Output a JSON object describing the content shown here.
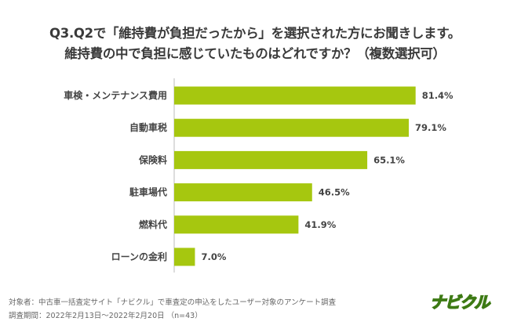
{
  "title_line1": "Q3.Q2で「維持費が負担だったから」を選択された方にお聞きします。",
  "title_line2": "維持費の中で負担に感じていたものはどれですか？（複数選択可）",
  "footnote1": "対象者：中古車一括査定サイト「ナビクル」で車査定の申込をしたユーザー対象のアンケート調査",
  "footnote2": "調査期間：2022年2月13日〜2022年2月20日 （n=43）",
  "logo": "ナビクル",
  "colors": {
    "bar": "#a6c70f"
  },
  "chart_data": {
    "type": "bar",
    "orientation": "horizontal",
    "title": "Q3.Q2で「維持費が負担だったから」を選択された方にお聞きします。 維持費の中で負担に感じていたものはどれですか？（複数選択可）",
    "categories": [
      "車検・メンテナンス費用",
      "自動車税",
      "保険料",
      "駐車場代",
      "燃料代",
      "ローンの金利"
    ],
    "values": [
      81.4,
      79.1,
      65.1,
      46.5,
      41.9,
      7.0
    ],
    "value_labels": [
      "81.4%",
      "79.1%",
      "65.1%",
      "46.5%",
      "41.9%",
      "7.0%"
    ],
    "unit": "%",
    "xlim": [
      0,
      100
    ],
    "grid": false
  }
}
